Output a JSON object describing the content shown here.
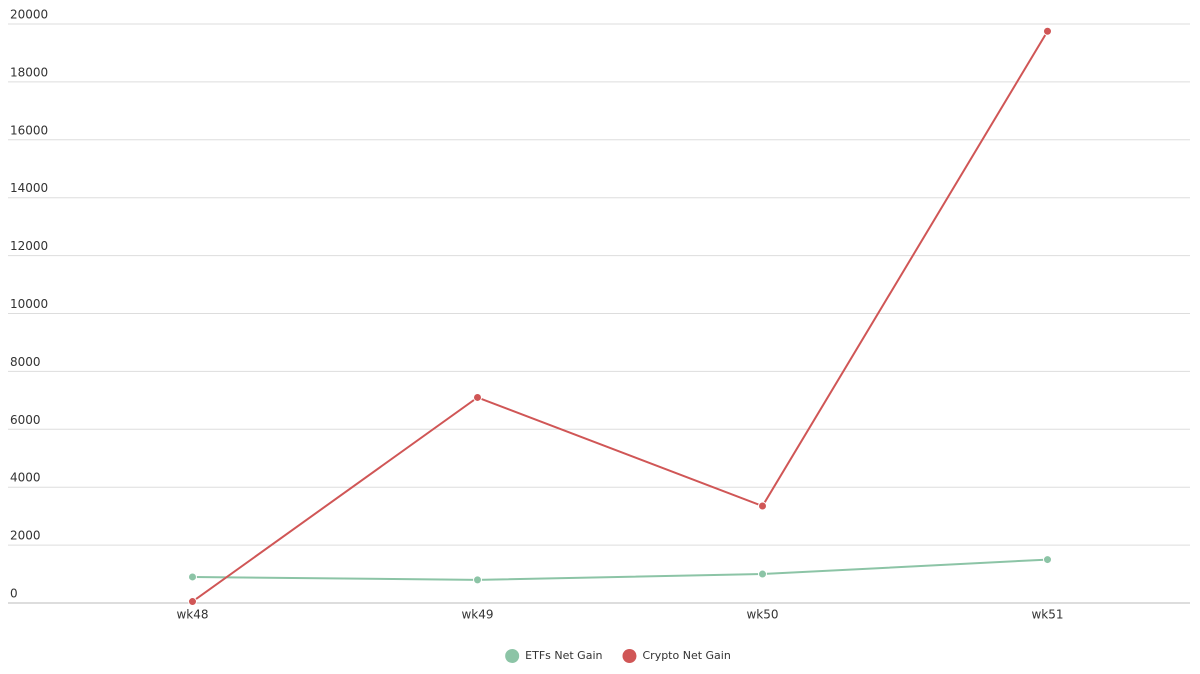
{
  "chart_data": {
    "type": "line",
    "categories": [
      "wk48",
      "wk49",
      "wk50",
      "wk51"
    ],
    "series": [
      {
        "name": "ETFs Net Gain",
        "color": "#8cc4a6",
        "values": [
          900,
          800,
          1000,
          1500
        ]
      },
      {
        "name": "Crypto Net Gain",
        "color": "#d05656",
        "values": [
          50,
          7100,
          3350,
          19750
        ]
      }
    ],
    "ylim": [
      0,
      20000
    ],
    "yticks": [
      0,
      2000,
      4000,
      6000,
      8000,
      10000,
      12000,
      14000,
      16000,
      18000,
      20000
    ],
    "grid": true,
    "legend": "bottom"
  }
}
